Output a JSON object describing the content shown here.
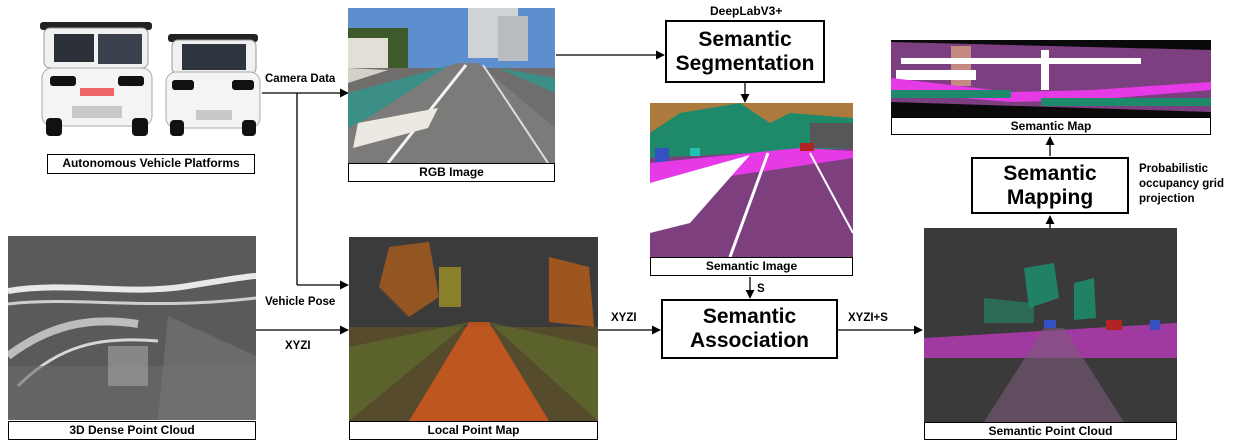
{
  "captions": {
    "vehicle_platforms": "Autonomous Vehicle Platforms",
    "rgb_image": "RGB Image",
    "semantic_image": "Semantic Image",
    "semantic_map": "Semantic Map",
    "dense_cloud": "3D Dense Point Cloud",
    "local_map": "Local Point Map",
    "semantic_cloud": "Semantic Point Cloud"
  },
  "blocks": {
    "segmentation": [
      "Semantic",
      "Segmentation"
    ],
    "association": [
      "Semantic",
      "Association"
    ],
    "mapping": [
      "Semantic",
      "Mapping"
    ]
  },
  "labels": {
    "deeplab": "DeepLabV3+",
    "camera_data": "Camera Data",
    "vehicle_pose": "Vehicle Pose",
    "xyzi_left": "XYZI",
    "xyzi_mid": "XYZI",
    "xyzi_s": "XYZI+S",
    "s": "S",
    "probabilistic": [
      "Probabilistic",
      "occupancy grid",
      "projection"
    ]
  }
}
